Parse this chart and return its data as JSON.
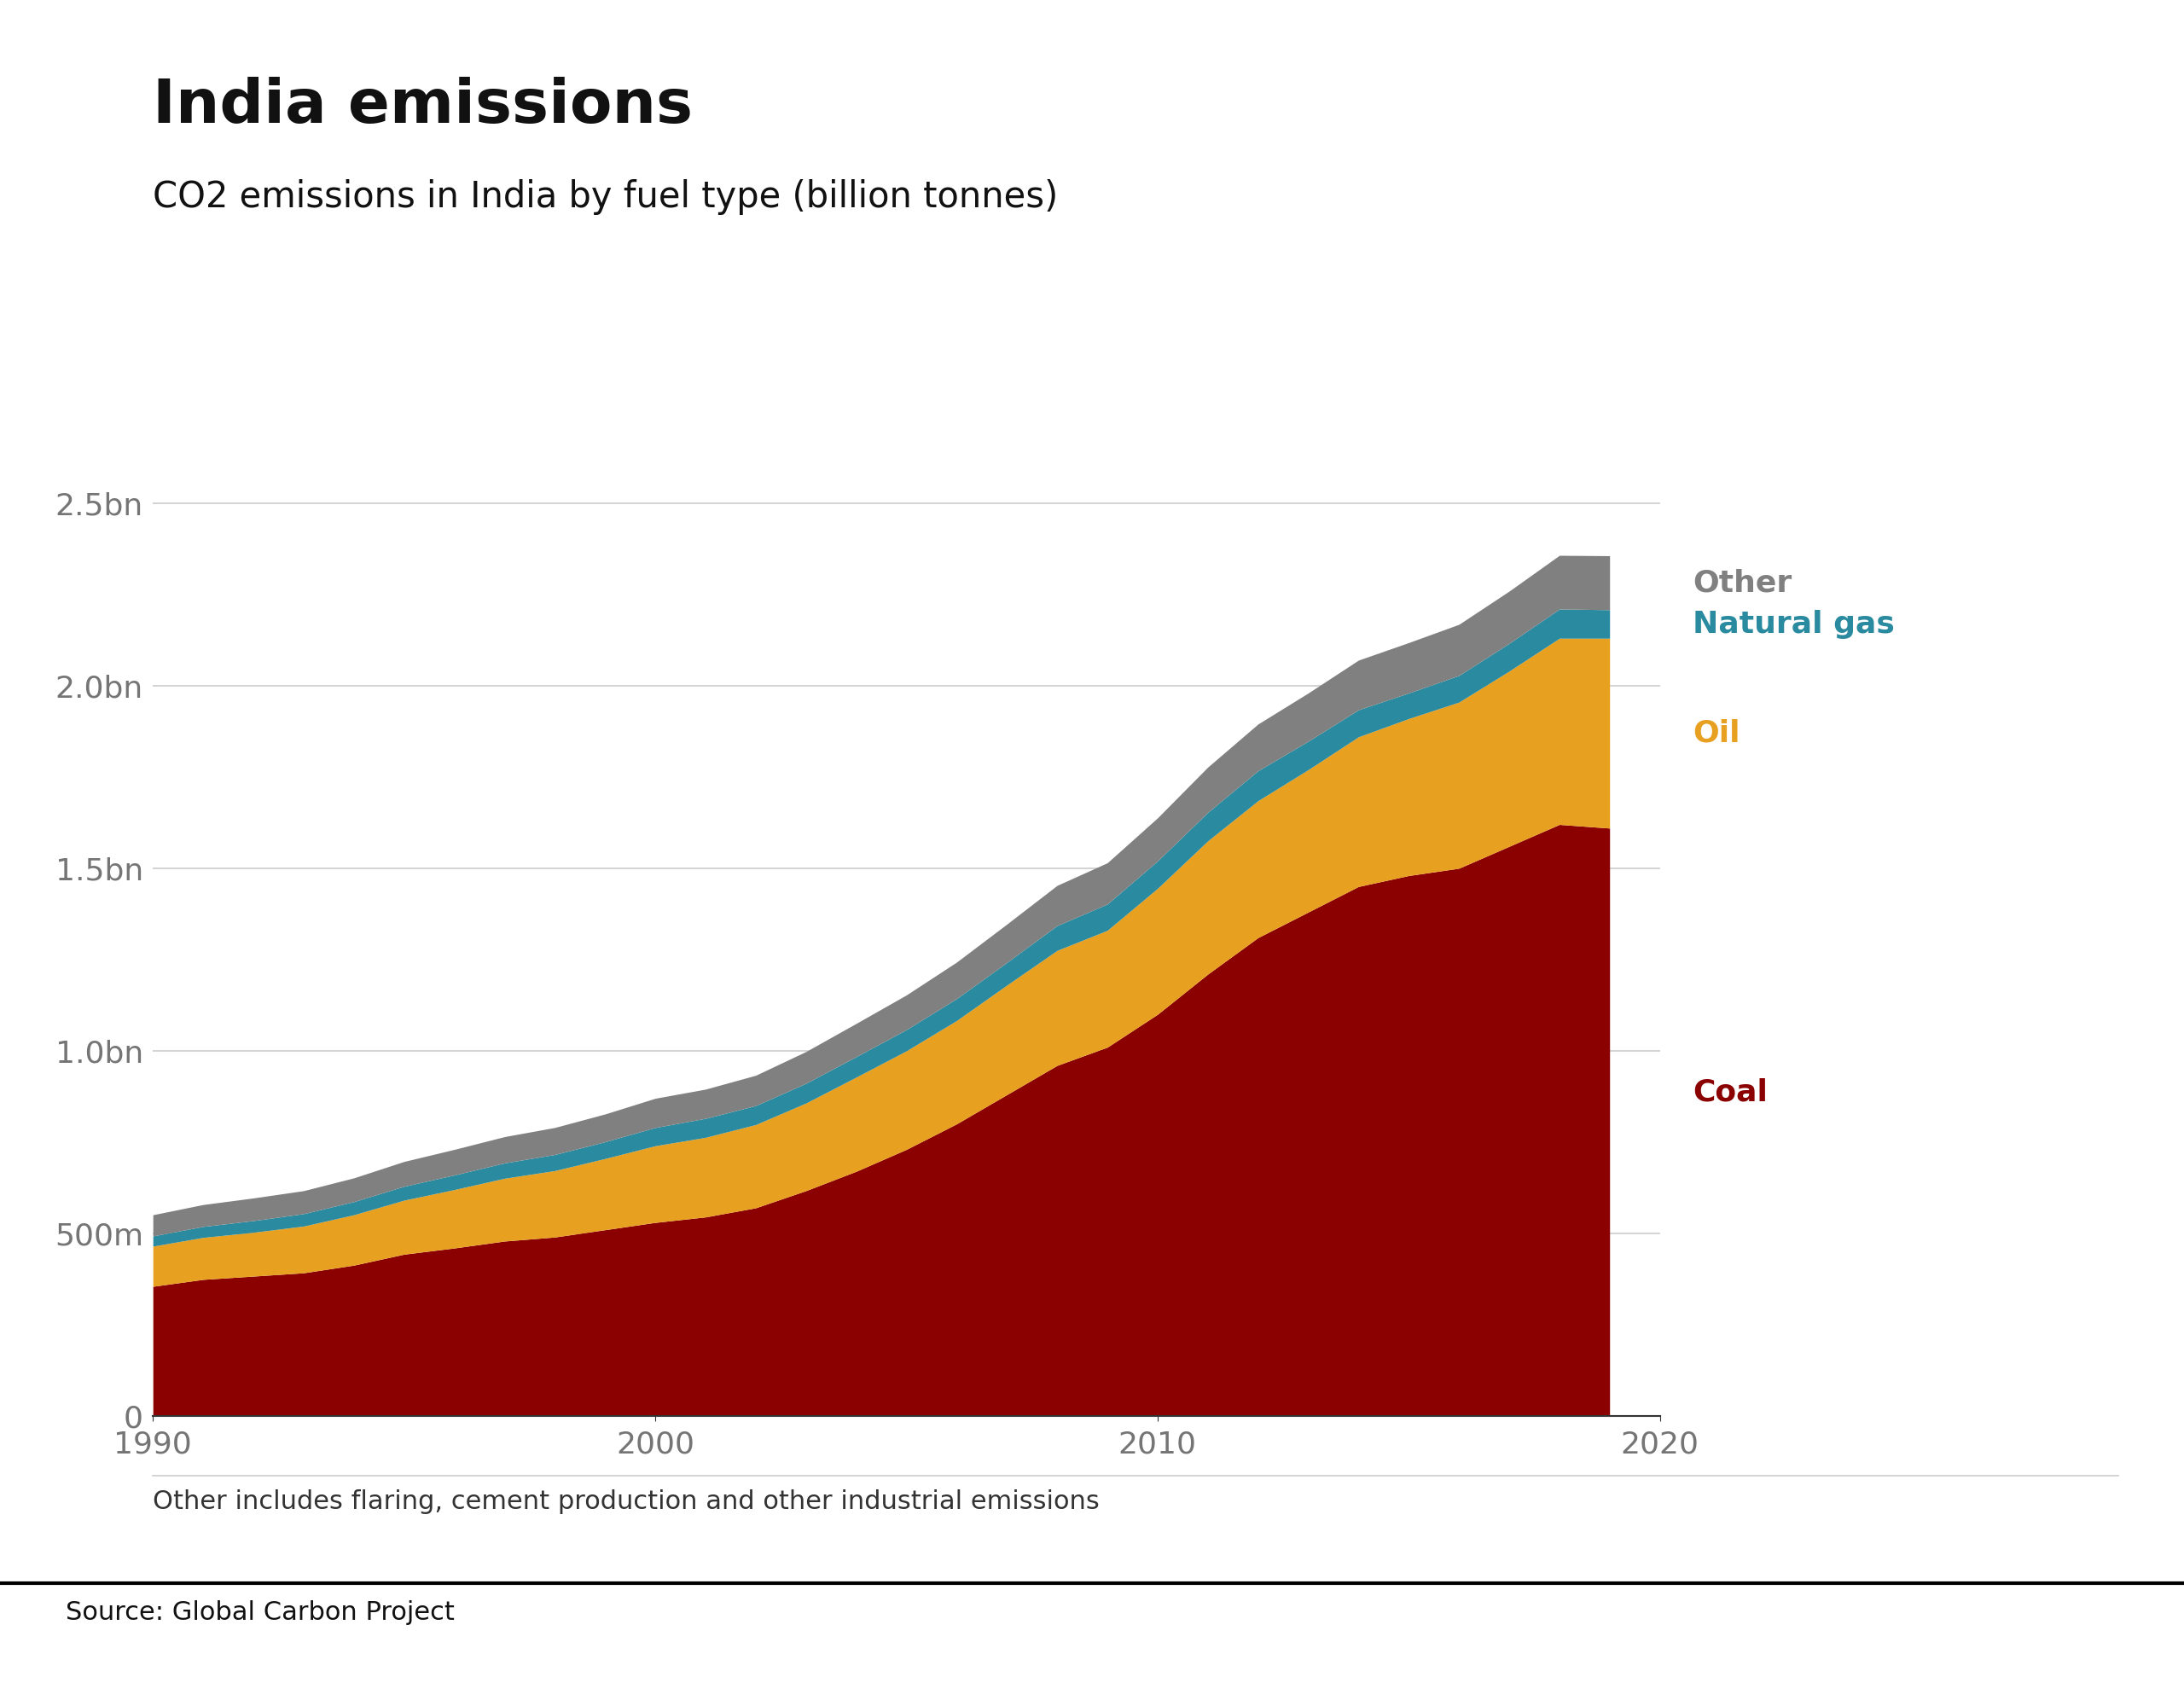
{
  "title": "India emissions",
  "subtitle": "CO2 emissions in India by fuel type (billion tonnes)",
  "footnote": "Other includes flaring, cement production and other industrial emissions",
  "source": "Source: Global Carbon Project",
  "years": [
    1990,
    1991,
    1992,
    1993,
    1994,
    1995,
    1996,
    1997,
    1998,
    1999,
    2000,
    2001,
    2002,
    2003,
    2004,
    2005,
    2006,
    2007,
    2008,
    2009,
    2010,
    2011,
    2012,
    2013,
    2014,
    2015,
    2016,
    2017,
    2018,
    2019
  ],
  "coal": [
    0.355,
    0.374,
    0.383,
    0.392,
    0.413,
    0.443,
    0.46,
    0.479,
    0.49,
    0.51,
    0.53,
    0.545,
    0.57,
    0.617,
    0.67,
    0.73,
    0.8,
    0.88,
    0.96,
    1.01,
    1.1,
    1.21,
    1.31,
    1.38,
    1.45,
    1.48,
    1.5,
    1.56,
    1.62,
    1.61
  ],
  "oil": [
    0.11,
    0.115,
    0.12,
    0.128,
    0.138,
    0.148,
    0.16,
    0.172,
    0.182,
    0.195,
    0.21,
    0.218,
    0.228,
    0.24,
    0.258,
    0.27,
    0.283,
    0.3,
    0.315,
    0.32,
    0.345,
    0.365,
    0.375,
    0.39,
    0.41,
    0.43,
    0.455,
    0.48,
    0.51,
    0.52
  ],
  "natural_gas": [
    0.028,
    0.03,
    0.032,
    0.034,
    0.036,
    0.038,
    0.04,
    0.042,
    0.044,
    0.046,
    0.05,
    0.052,
    0.052,
    0.054,
    0.056,
    0.058,
    0.06,
    0.062,
    0.068,
    0.072,
    0.075,
    0.078,
    0.082,
    0.078,
    0.074,
    0.07,
    0.073,
    0.076,
    0.08,
    0.078
  ],
  "other": [
    0.058,
    0.06,
    0.062,
    0.063,
    0.065,
    0.068,
    0.07,
    0.072,
    0.074,
    0.076,
    0.08,
    0.08,
    0.083,
    0.087,
    0.091,
    0.095,
    0.1,
    0.105,
    0.11,
    0.113,
    0.118,
    0.124,
    0.128,
    0.132,
    0.136,
    0.138,
    0.14,
    0.143,
    0.147,
    0.148
  ],
  "coal_color": "#8B0000",
  "oil_color": "#E8A020",
  "natural_gas_color": "#2A8A9F",
  "other_color": "#808080",
  "background_color": "#ffffff",
  "title_fontsize": 52,
  "subtitle_fontsize": 30,
  "tick_label_color": "#757575",
  "ytick_labels": [
    "0",
    "500m",
    "1.0bn",
    "1.5bn",
    "2.0bn",
    "2.5bn"
  ],
  "ytick_values": [
    0,
    0.5,
    1.0,
    1.5,
    2.0,
    2.5
  ],
  "ylim": [
    0,
    2.85
  ],
  "xlim": [
    1990,
    2020
  ],
  "xtick_values": [
    1990,
    2000,
    2010,
    2020
  ],
  "xtick_labels": [
    "1990",
    "2000",
    "2010",
    "2020"
  ]
}
